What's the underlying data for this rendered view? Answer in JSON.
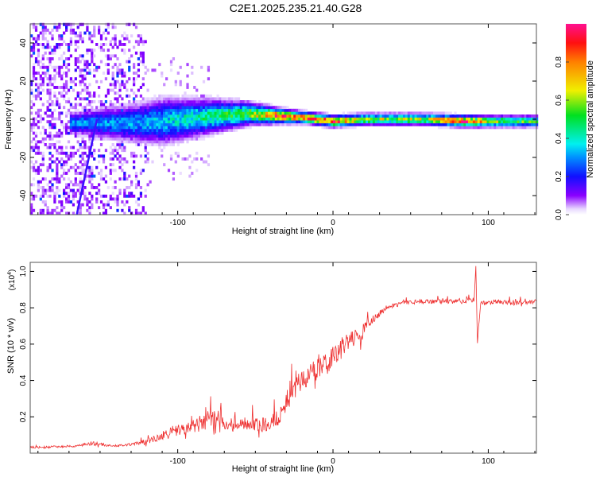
{
  "title": "C2E1.2025.235.21.40.G28",
  "chart_data": [
    {
      "type": "heatmap",
      "xlabel": "Height of straight line (km)",
      "ylabel": "Frequency (Hz)",
      "xlim": [
        -195,
        131
      ],
      "ylim": [
        -50,
        50
      ],
      "xticks": [
        -100,
        0,
        100
      ],
      "yticks": [
        -40,
        -20,
        0,
        20,
        40
      ],
      "colorbar": {
        "label": "Normalized spectral amplitude",
        "range": [
          0,
          1
        ],
        "ticks": [
          "0.0",
          "0.2",
          "0.4",
          "0.6",
          "0.8"
        ]
      },
      "ridge": [
        {
          "h": -165,
          "f": -2,
          "amp": 0.3,
          "width": 6
        },
        {
          "h": -130,
          "f": -2,
          "amp": 0.3,
          "width": 10
        },
        {
          "h": -110,
          "f": -1,
          "amp": 0.35,
          "width": 12
        },
        {
          "h": -80,
          "f": 1.5,
          "amp": 0.45,
          "width": 9
        },
        {
          "h": -55,
          "f": 3,
          "amp": 0.55,
          "width": 6
        },
        {
          "h": -38,
          "f": 2,
          "amp": 0.85,
          "width": 4
        },
        {
          "h": -20,
          "f": 1,
          "amp": 0.8,
          "width": 3
        },
        {
          "h": 0,
          "f": -1,
          "amp": 0.85,
          "width": 3
        },
        {
          "h": 20,
          "f": 0,
          "amp": 0.6,
          "width": 3
        },
        {
          "h": 60,
          "f": 0,
          "amp": 0.62,
          "width": 3
        },
        {
          "h": 85,
          "f": -1,
          "amp": 0.92,
          "width": 3
        },
        {
          "h": 100,
          "f": -1,
          "amp": 0.6,
          "width": 3
        },
        {
          "h": 131,
          "f": -1,
          "amp": 0.5,
          "width": 3
        }
      ],
      "noise_region": {
        "h_max": -120,
        "amp": 0.2
      },
      "streak": [
        {
          "h": -165,
          "f": -50
        },
        {
          "h": -152,
          "f": 0
        }
      ]
    },
    {
      "type": "line",
      "xlabel": "Height of straight line (km)",
      "ylabel": "SNR (10 * v/v)",
      "yscale_label": "(x10",
      "yscale_exp": "4",
      "xlim": [
        -195,
        131
      ],
      "ylim": [
        0,
        1.05
      ],
      "xticks": [
        -100,
        0,
        100
      ],
      "yticks": [
        "0.2",
        "0.4",
        "0.6",
        "0.8",
        "1.0"
      ],
      "color": "#ee3030",
      "series": [
        {
          "name": "SNR",
          "x": [
            -195,
            -185,
            -175,
            -165,
            -155,
            -145,
            -135,
            -125,
            -115,
            -105,
            -95,
            -85,
            -75,
            -65,
            -55,
            -45,
            -35,
            -25,
            -15,
            -5,
            5,
            15,
            25,
            35,
            45,
            55,
            65,
            75,
            85,
            91,
            92,
            93,
            95,
            105,
            115,
            131
          ],
          "y": [
            0.03,
            0.03,
            0.035,
            0.035,
            0.05,
            0.04,
            0.04,
            0.05,
            0.07,
            0.1,
            0.12,
            0.15,
            0.17,
            0.14,
            0.15,
            0.14,
            0.18,
            0.33,
            0.42,
            0.46,
            0.55,
            0.6,
            0.72,
            0.8,
            0.82,
            0.83,
            0.83,
            0.83,
            0.83,
            0.84,
            1.03,
            0.6,
            0.82,
            0.83,
            0.82,
            0.83
          ],
          "noise": [
            0.01,
            0.01,
            0.01,
            0.01,
            0.02,
            0.01,
            0.01,
            0.02,
            0.03,
            0.05,
            0.06,
            0.07,
            0.08,
            0.07,
            0.06,
            0.07,
            0.08,
            0.1,
            0.1,
            0.1,
            0.1,
            0.1,
            0.04,
            0.02,
            0.02,
            0.02,
            0.02,
            0.02,
            0.02,
            0.02,
            0,
            0,
            0.02,
            0.02,
            0.02,
            0.02
          ]
        }
      ]
    }
  ]
}
